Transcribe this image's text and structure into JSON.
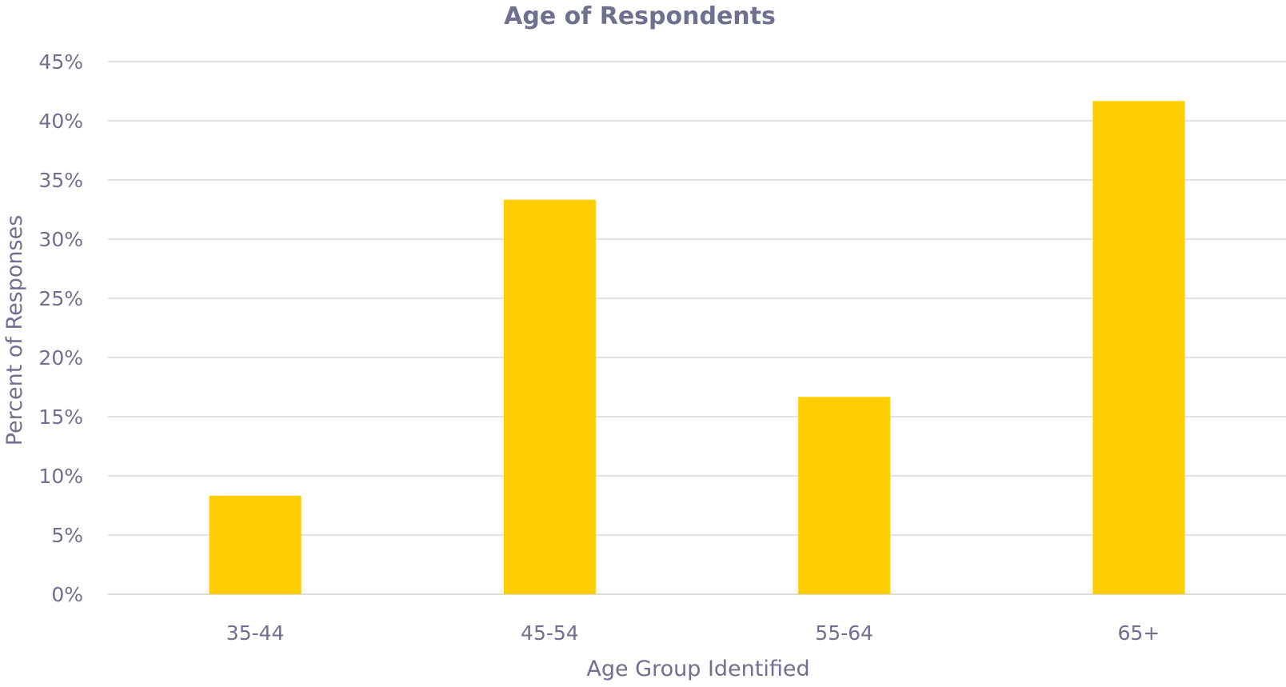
{
  "chart_data": {
    "type": "bar",
    "title": "Age of Respondents",
    "xlabel": "Age Group Identified",
    "ylabel": "Percent of Responses",
    "categories": [
      "35-44",
      "45-54",
      "55-64",
      "65+"
    ],
    "values": [
      8.33,
      33.33,
      16.67,
      41.67
    ],
    "ylim": [
      0,
      45
    ],
    "yticks": [
      "0%",
      "5%",
      "10%",
      "15%",
      "20%",
      "25%",
      "30%",
      "35%",
      "40%",
      "45%"
    ],
    "ytick_values": [
      0,
      5,
      10,
      15,
      20,
      25,
      30,
      35,
      40,
      45
    ],
    "grid": true,
    "legend": "none",
    "bar_color": "#FFCD00"
  }
}
